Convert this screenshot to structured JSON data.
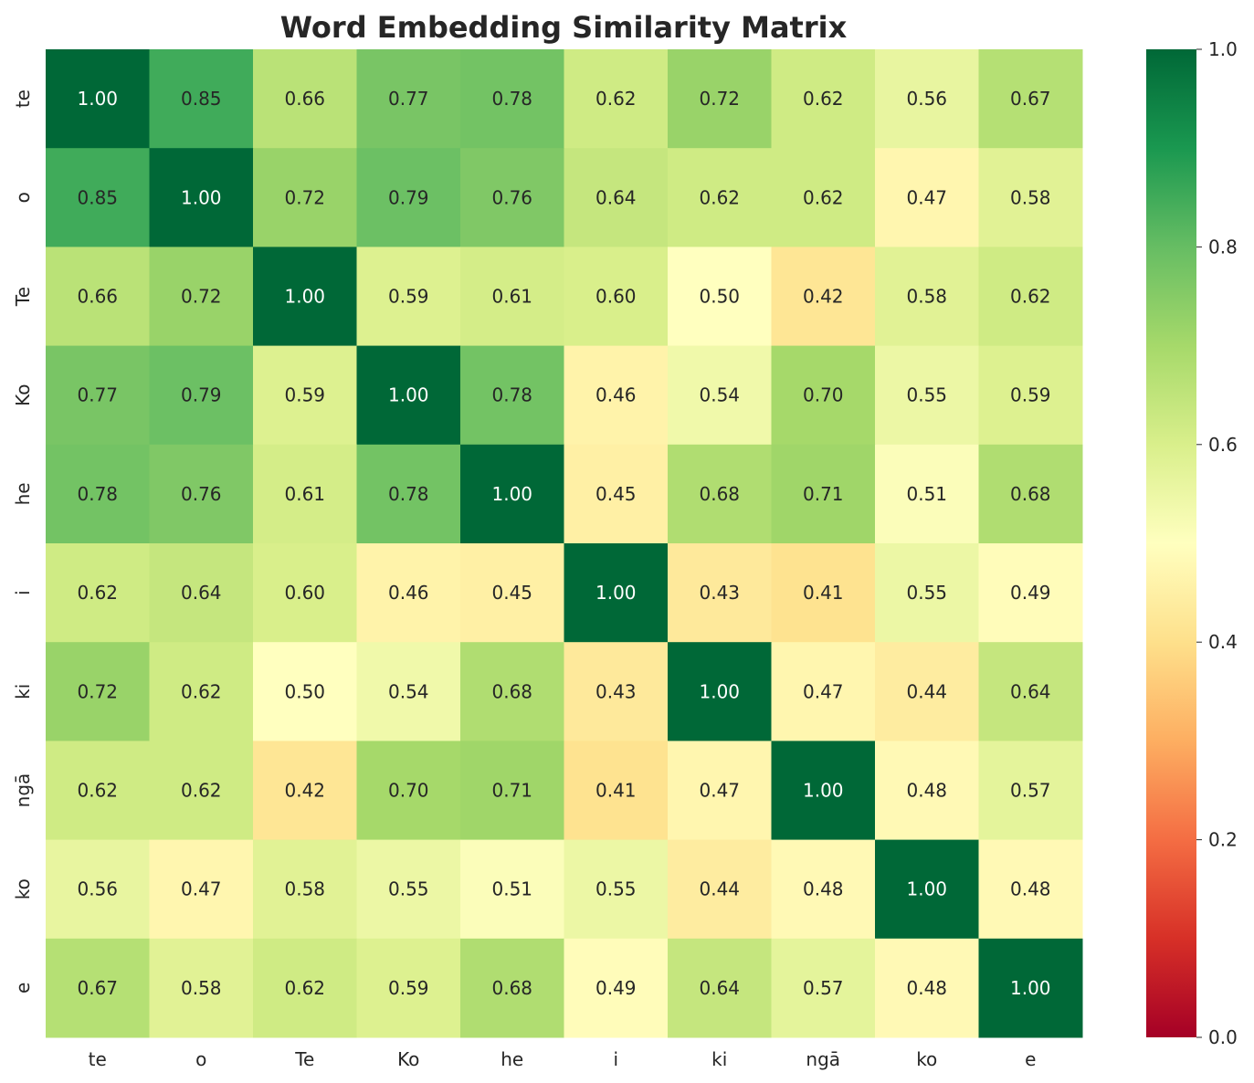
{
  "chart_data": {
    "type": "heatmap",
    "title": "Word Embedding Similarity Matrix",
    "xlabel": "",
    "ylabel": "",
    "x_categories": [
      "te",
      "o",
      "Te",
      "Ko",
      "he",
      "i",
      "ki",
      "ngā",
      "ko",
      "e"
    ],
    "y_categories": [
      "te",
      "o",
      "Te",
      "Ko",
      "he",
      "i",
      "ki",
      "ngā",
      "ko",
      "e"
    ],
    "values": [
      [
        1.0,
        0.85,
        0.66,
        0.77,
        0.78,
        0.62,
        0.72,
        0.62,
        0.56,
        0.67
      ],
      [
        0.85,
        1.0,
        0.72,
        0.79,
        0.76,
        0.64,
        0.62,
        0.62,
        0.47,
        0.58
      ],
      [
        0.66,
        0.72,
        1.0,
        0.59,
        0.61,
        0.6,
        0.5,
        0.42,
        0.58,
        0.62
      ],
      [
        0.77,
        0.79,
        0.59,
        1.0,
        0.78,
        0.46,
        0.54,
        0.7,
        0.55,
        0.59
      ],
      [
        0.78,
        0.76,
        0.61,
        0.78,
        1.0,
        0.45,
        0.68,
        0.71,
        0.51,
        0.68
      ],
      [
        0.62,
        0.64,
        0.6,
        0.46,
        0.45,
        1.0,
        0.43,
        0.41,
        0.55,
        0.49
      ],
      [
        0.72,
        0.62,
        0.5,
        0.54,
        0.68,
        0.43,
        1.0,
        0.47,
        0.44,
        0.64
      ],
      [
        0.62,
        0.62,
        0.42,
        0.7,
        0.71,
        0.41,
        0.47,
        1.0,
        0.48,
        0.57
      ],
      [
        0.56,
        0.47,
        0.58,
        0.55,
        0.51,
        0.55,
        0.44,
        0.48,
        1.0,
        0.48
      ],
      [
        0.67,
        0.58,
        0.62,
        0.59,
        0.68,
        0.49,
        0.64,
        0.57,
        0.48,
        1.0
      ]
    ],
    "value_format": "0.00",
    "colormap": "RdYlGn",
    "colormap_stops": [
      "#a50026",
      "#d73027",
      "#f46d43",
      "#fdae61",
      "#fee08b",
      "#ffffbf",
      "#d9ef8b",
      "#a6d96a",
      "#66bd63",
      "#1a9850",
      "#006837"
    ],
    "vmin": 0.0,
    "vmax": 1.0,
    "colorbar_ticks": [
      0.0,
      0.2,
      0.4,
      0.6,
      0.8,
      1.0
    ],
    "colorbar_tick_labels": [
      "0.0",
      "0.2",
      "0.4",
      "0.6",
      "0.8",
      "1.0"
    ],
    "grid": false,
    "legend": "colorbar-right"
  }
}
